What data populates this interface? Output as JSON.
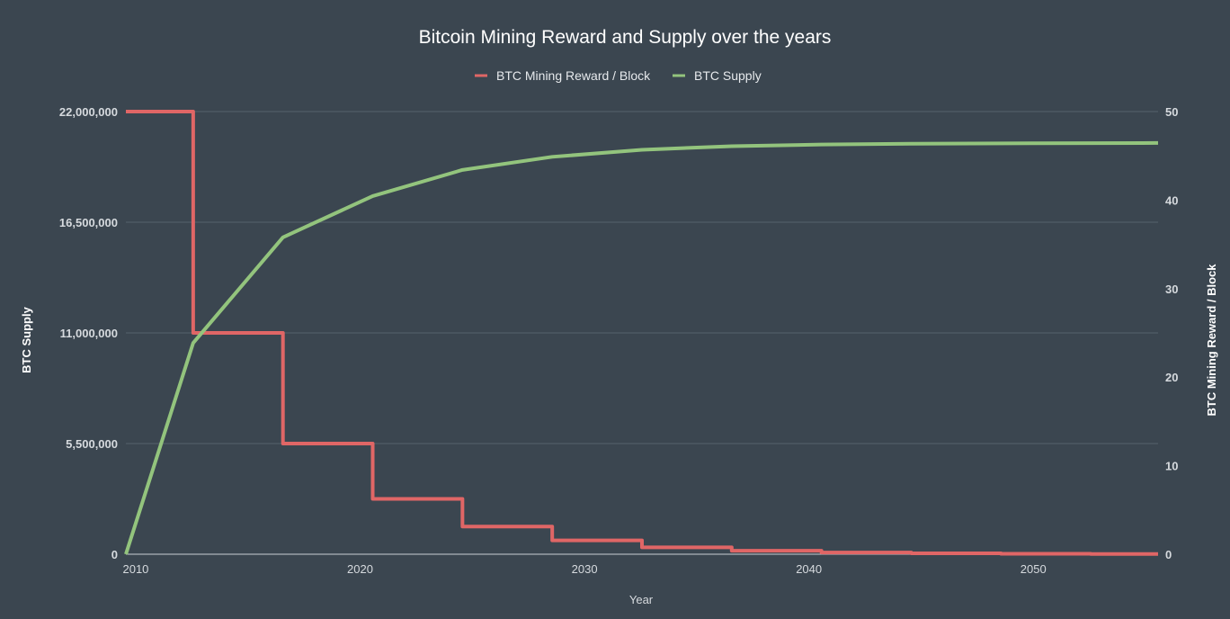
{
  "chart_data": {
    "type": "line",
    "title": "Bitcoin Mining Reward and Supply over the years",
    "xlabel": "Year",
    "ylabel_left": "BTC Supply",
    "ylabel_right": "BTC Mining Reward / Block",
    "xlim": [
      2009,
      2055
    ],
    "ylim_left": [
      0,
      22000000
    ],
    "ylim_right": [
      0,
      50
    ],
    "x_ticks": [
      "2010",
      "2020",
      "2030",
      "2040",
      "2050"
    ],
    "y_left_ticks": [
      "0",
      "5,500,000",
      "11,000,000",
      "16,500,000",
      "22,000,000"
    ],
    "y_right_ticks": [
      "0",
      "10",
      "20",
      "30",
      "40",
      "50"
    ],
    "grid": true,
    "legend_placement": "top",
    "series": [
      {
        "name": "BTC Mining Reward / Block",
        "axis": "right",
        "style": "step",
        "color": "#e06666",
        "x": [
          2009,
          2012,
          2016,
          2020,
          2024,
          2028,
          2032,
          2036,
          2040,
          2044,
          2048,
          2052,
          2055
        ],
        "values": [
          50,
          25,
          12.5,
          6.25,
          3.125,
          1.5625,
          0.78125,
          0.390625,
          0.1953125,
          0.09765625,
          0.048828125,
          0.0244140625,
          0.0244140625
        ]
      },
      {
        "name": "BTC Supply",
        "axis": "left",
        "style": "line",
        "color": "#93c47d",
        "x": [
          2009,
          2012,
          2016,
          2020,
          2024,
          2028,
          2032,
          2036,
          2040,
          2044,
          2048,
          2052,
          2055
        ],
        "values": [
          0,
          10500000,
          15750000,
          17800000,
          19100000,
          19750000,
          20100000,
          20280000,
          20360000,
          20400000,
          20420000,
          20430000,
          20440000
        ]
      }
    ]
  }
}
